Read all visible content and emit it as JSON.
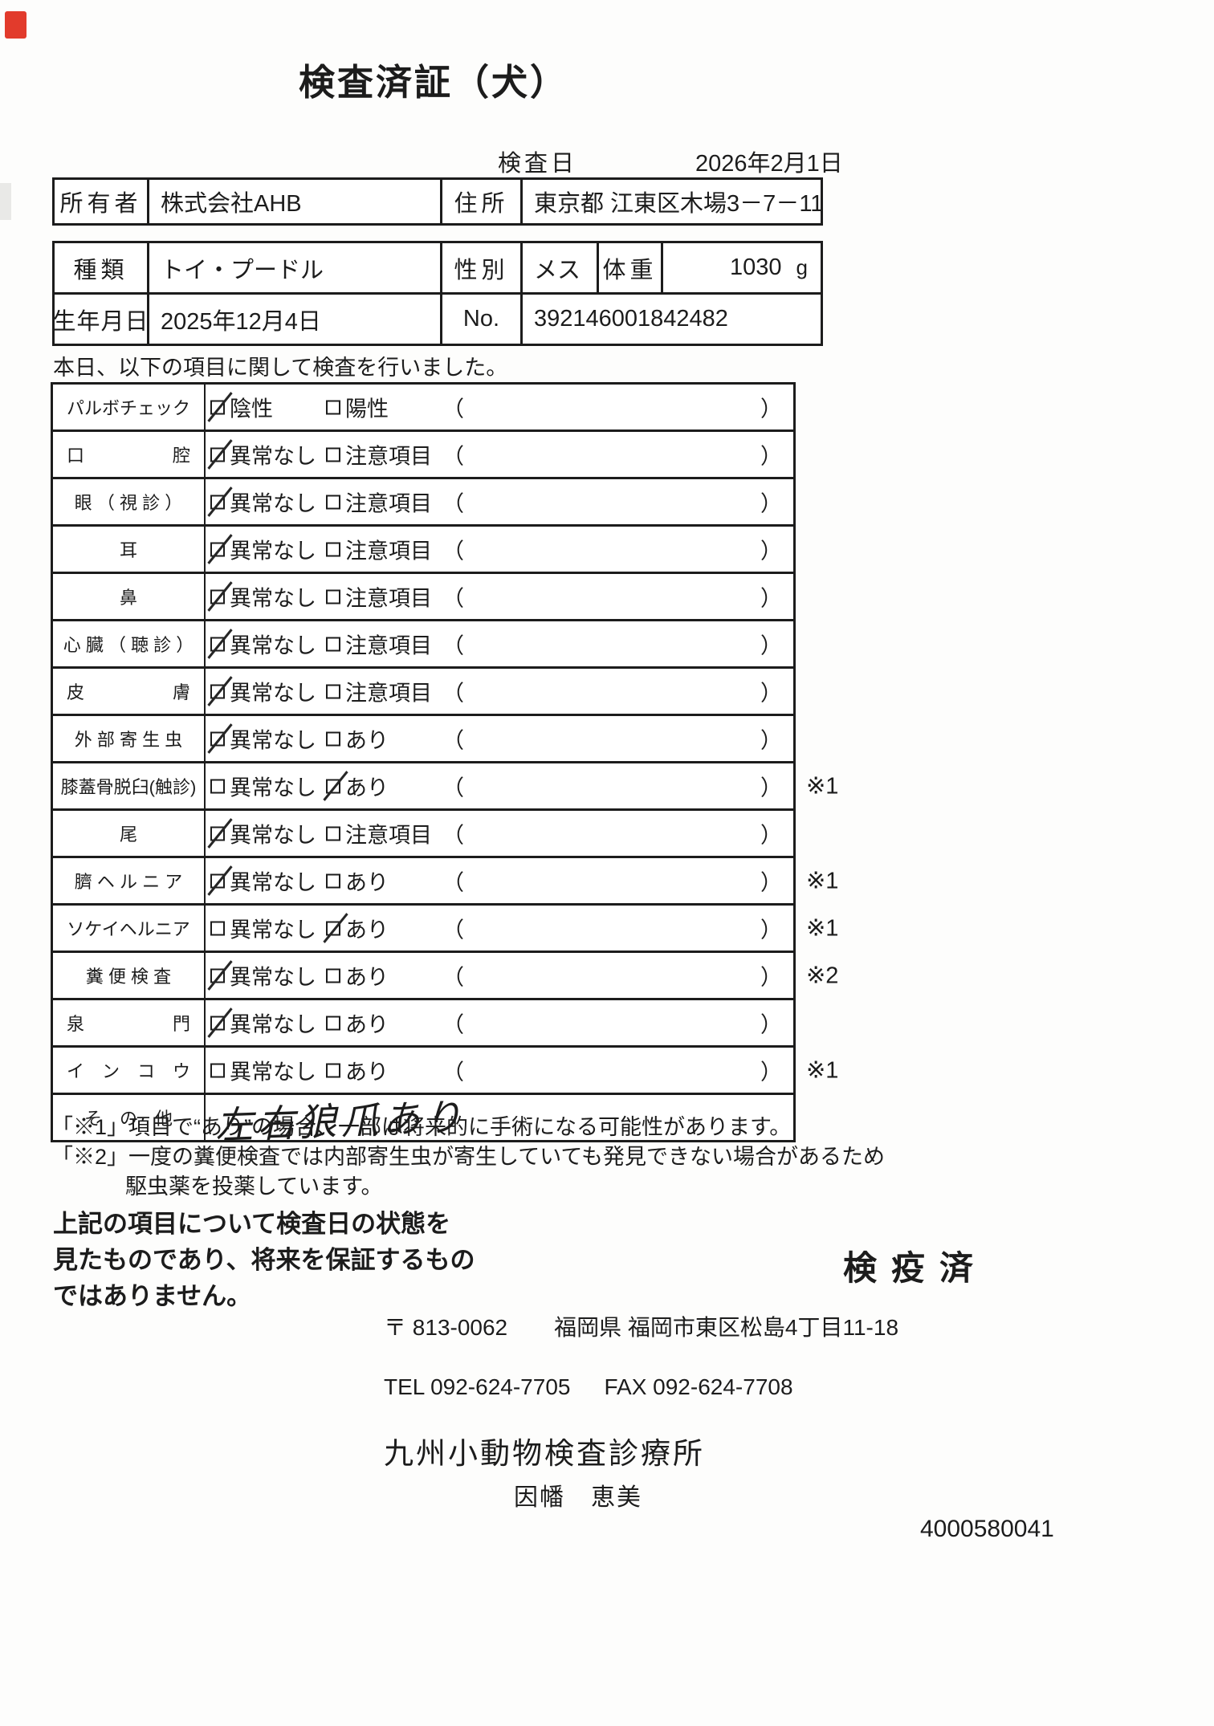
{
  "colors": {
    "ink": "#1c1c1c",
    "scan_mark_red": "#e23b2c"
  },
  "title": "検査済証（犬）",
  "header": {
    "inspection_date_label": "検査日",
    "inspection_date": "2026年2月1日",
    "owner_label": "所有者",
    "owner": "株式会社AHB",
    "address_label": "住所",
    "address": "東京都 江東区木場3－7－11",
    "breed_label": "種類",
    "breed": "トイ・プードル",
    "sex_label": "性別",
    "sex": "メス",
    "weight_label": "体重",
    "weight_value": "1030",
    "weight_unit": "g",
    "birthdate_label": "生年月日",
    "birthdate": "2025年12月4日",
    "no_label": "No.",
    "no_value": "392146001842482"
  },
  "intro_text": "本日、以下の項目に関して検査を行いました。",
  "checklist": {
    "rows": [
      {
        "name": "パルボチェック",
        "opt1": "陰性",
        "opt1_checked": "true",
        "opt2": "陽性",
        "opt2_checked": "false",
        "paren_open": "（",
        "paren_close": "）",
        "mark": ""
      },
      {
        "name": "口　　　　　腔",
        "opt1": "異常なし",
        "opt1_checked": "true",
        "opt2": "注意項目",
        "opt2_checked": "false",
        "paren_open": "（",
        "paren_close": "）",
        "mark": ""
      },
      {
        "name": "眼 （ 視 診 ）",
        "opt1": "異常なし",
        "opt1_checked": "true",
        "opt2": "注意項目",
        "opt2_checked": "false",
        "paren_open": "（",
        "paren_close": "）",
        "mark": ""
      },
      {
        "name": "耳",
        "opt1": "異常なし",
        "opt1_checked": "true",
        "opt2": "注意項目",
        "opt2_checked": "false",
        "paren_open": "（",
        "paren_close": "）",
        "mark": ""
      },
      {
        "name": "鼻",
        "opt1": "異常なし",
        "opt1_checked": "true",
        "opt2": "注意項目",
        "opt2_checked": "false",
        "paren_open": "（",
        "paren_close": "）",
        "mark": ""
      },
      {
        "name": "心 臓 （ 聴 診 ）",
        "opt1": "異常なし",
        "opt1_checked": "true",
        "opt2": "注意項目",
        "opt2_checked": "false",
        "paren_open": "（",
        "paren_close": "）",
        "mark": ""
      },
      {
        "name": "皮　　　　　膚",
        "opt1": "異常なし",
        "opt1_checked": "true",
        "opt2": "注意項目",
        "opt2_checked": "false",
        "paren_open": "（",
        "paren_close": "）",
        "mark": ""
      },
      {
        "name": "外 部 寄 生 虫",
        "opt1": "異常なし",
        "opt1_checked": "true",
        "opt2": "あり",
        "opt2_checked": "false",
        "paren_open": "（",
        "paren_close": "）",
        "mark": ""
      },
      {
        "name": "膝蓋骨脱臼(触診)",
        "opt1": "異常なし",
        "opt1_checked": "false",
        "opt2": "あり",
        "opt2_checked": "true",
        "paren_open": "（",
        "paren_close": "）",
        "mark": "※1"
      },
      {
        "name": "尾",
        "opt1": "異常なし",
        "opt1_checked": "true",
        "opt2": "注意項目",
        "opt2_checked": "false",
        "paren_open": "（",
        "paren_close": "）",
        "mark": ""
      },
      {
        "name": "臍 ヘ ル ニ ア",
        "opt1": "異常なし",
        "opt1_checked": "true",
        "opt2": "あり",
        "opt2_checked": "false",
        "paren_open": "（",
        "paren_close": "）",
        "mark": "※1"
      },
      {
        "name": "ソケイヘルニア",
        "opt1": "異常なし",
        "opt1_checked": "false",
        "opt2": "あり",
        "opt2_checked": "true",
        "paren_open": "（",
        "paren_close": "）",
        "mark": "※1"
      },
      {
        "name": "糞 便 検 査",
        "opt1": "異常なし",
        "opt1_checked": "true",
        "opt2": "あり",
        "opt2_checked": "false",
        "paren_open": "（",
        "paren_close": "）",
        "mark": "※2"
      },
      {
        "name": "泉　　　　　門",
        "opt1": "異常なし",
        "opt1_checked": "true",
        "opt2": "あり",
        "opt2_checked": "false",
        "paren_open": "（",
        "paren_close": "）",
        "mark": ""
      },
      {
        "name": "イ　ン　コ　ウ",
        "opt1": "異常なし",
        "opt1_checked": "false",
        "opt2": "あり",
        "opt2_checked": "false",
        "paren_open": "（",
        "paren_close": "）",
        "mark": "※1"
      }
    ],
    "other_row": {
      "name": "そ　の　他",
      "text": "左右狼爪あり"
    }
  },
  "notes": {
    "note1": "「※1」項目で“あり”の場合、一部は将来的に手術になる可能性があります。",
    "note2_line1": "「※2」一度の糞便検査では内部寄生虫が寄生していても発見できない場合があるため",
    "note2_line2": "駆虫薬を投薬しています。"
  },
  "disclaimer": {
    "line1": "上記の項目について検査日の状態を",
    "line2": "見たものであり、将来を保証するもの",
    "line3": "ではありません。"
  },
  "stamp_text": "検疫済",
  "footer": {
    "postal_mark": "〒",
    "postal_code": "813-0062",
    "clinic_address": "福岡県 福岡市東区松島4丁目11-18",
    "tel": "TEL 092-624-7705",
    "fax": "FAX 092-624-7708",
    "clinic_name": "九州小動物検査診療所",
    "examiner_name": "因幡　恵美",
    "serial_number": "4000580041"
  }
}
